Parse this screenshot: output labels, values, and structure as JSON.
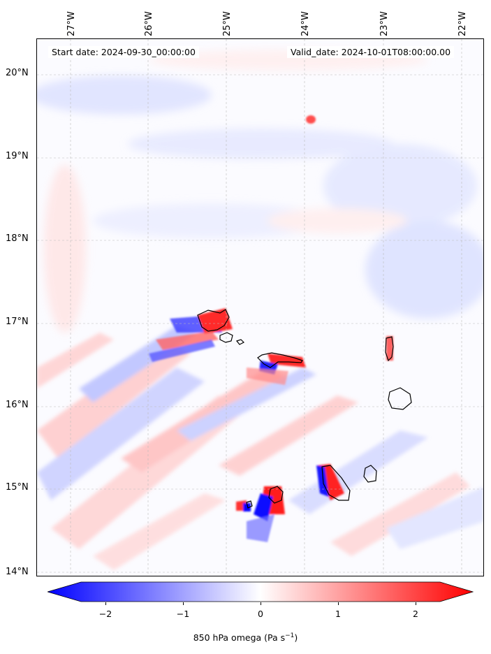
{
  "header": {
    "start_date": "Start date: 2024-09-30_00:00:00",
    "valid_date": "Valid_date: 2024-10-01T08:00:00.00"
  },
  "map": {
    "projection": "lat-lon",
    "lon_labels": [
      "27°W",
      "26°W",
      "25°W",
      "24°W",
      "23°W",
      "22°W"
    ],
    "lat_labels": [
      "20°N",
      "19°N",
      "18°N",
      "17°N",
      "16°N",
      "15°N",
      "14°N"
    ],
    "gridlines": true,
    "islands": [
      "Santo Antão",
      "São Vicente",
      "São Nicolau",
      "Sal",
      "Boa Vista",
      "Maio",
      "Santiago",
      "Fogo",
      "Brava"
    ]
  },
  "colorbar": {
    "ticks": [
      "−2",
      "−1",
      "0",
      "1",
      "2"
    ],
    "label_main": "850 hPa omega (Pa s",
    "label_sup": "−1",
    "label_end": ")",
    "range": [
      -2.6,
      2.6
    ],
    "colors": {
      "negative": "#0000ff",
      "zero": "#ffffff",
      "positive": "#ff0000"
    }
  }
}
